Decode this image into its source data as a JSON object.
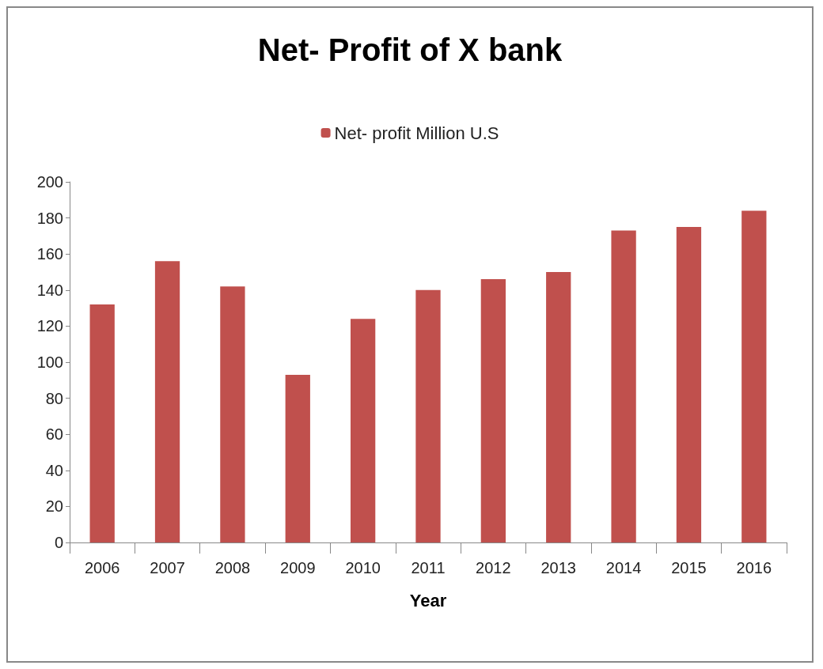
{
  "chart_data": {
    "type": "bar",
    "title": "Net- Profit of X bank",
    "xlabel": "Year",
    "categories": [
      "2006",
      "2007",
      "2008",
      "2009",
      "2010",
      "2011",
      "2012",
      "2013",
      "2014",
      "2015",
      "2016"
    ],
    "series": [
      {
        "name": "Net- profit Million U.S",
        "color": "#c0504d",
        "values": [
          132,
          156,
          142,
          93,
          124,
          140,
          146,
          150,
          173,
          175,
          184
        ]
      }
    ],
    "ylim": [
      0,
      200
    ],
    "yticks": [
      0,
      20,
      40,
      60,
      80,
      100,
      120,
      140,
      160,
      180,
      200
    ],
    "grid": false,
    "legend": "top"
  }
}
